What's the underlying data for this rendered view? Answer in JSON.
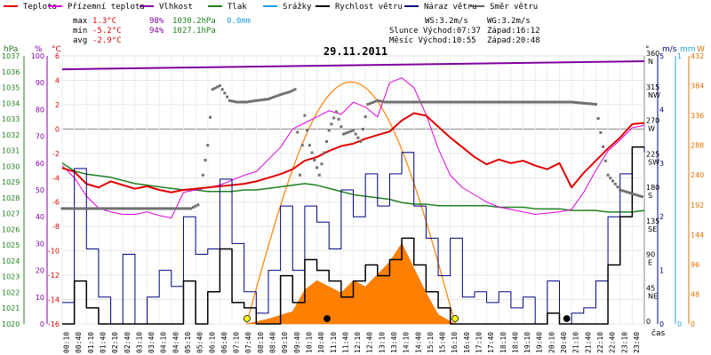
{
  "chart_data": {
    "type": "line",
    "title": "29.11.2011",
    "xlabel": "čas",
    "legend": [
      {
        "label": "Teplota",
        "color": "#e00000"
      },
      {
        "label": "Přízemní teplota",
        "color": "#e000e0"
      },
      {
        "label": "Vlhkost",
        "color": "#8000a0"
      },
      {
        "label": "Tlak",
        "color": "#208020"
      },
      {
        "label": "Srážky",
        "color": "#20a0e0"
      },
      {
        "label": "Rychlost větru",
        "color": "#000000"
      },
      {
        "label": "Náraz větru",
        "color": "#000080"
      },
      {
        "label": "Směr větru",
        "color": "#606060"
      }
    ],
    "stats": {
      "max_label": "max",
      "min_label": "min",
      "avg_label": "avg",
      "max_temp": "1.3°C",
      "max_hum": "98%",
      "max_press": "1030.2hPa",
      "max_rain": "0.0mm",
      "min_temp": "-5.2°C",
      "min_hum": "94%",
      "min_press": "1027.1hPa",
      "avg_temp": "-2.9°C"
    },
    "info": {
      "ws": "WS:3.2m/s",
      "wg": "WG:3.2m/s",
      "sun": "Slunce Východ:07:37",
      "sunset": "Západ:16:12",
      "moon": "Měsíc  Východ:10:55",
      "moonset": "Západ:20:48"
    },
    "axes": {
      "hpa_unit": "hPa",
      "pct_unit": "%",
      "temp_unit": "°C",
      "dir_unit": "°",
      "ms_unit": "m/s",
      "mm_unit": "mm",
      "w_unit": "W",
      "hpa_ticks": [
        1037,
        1036,
        1035,
        1034,
        1033,
        1032,
        1031,
        1030,
        1029,
        1028,
        1027,
        1026,
        1025,
        1024,
        1023,
        1022,
        1021,
        1020
      ],
      "pct_ticks": [
        100,
        90,
        80,
        70,
        60,
        50,
        40,
        30,
        20,
        10,
        0
      ],
      "temp_ticks": [
        6,
        4,
        2,
        0,
        -2,
        -4,
        -6,
        -8,
        -10,
        -12,
        -14,
        -16
      ],
      "dir_ticks": [
        {
          "deg": "360",
          "name": "N"
        },
        {
          "deg": "315",
          "name": "NW"
        },
        {
          "deg": "270",
          "name": "W"
        },
        {
          "deg": "225",
          "name": "SW"
        },
        {
          "deg": "180",
          "name": "S"
        },
        {
          "deg": "135",
          "name": "SE"
        },
        {
          "deg": "90",
          "name": "E"
        },
        {
          "deg": "45",
          "name": "NE"
        },
        {
          "deg": "0",
          "name": ""
        }
      ],
      "ms_ticks": [
        5,
        4,
        3,
        2,
        1,
        0
      ],
      "mm_ticks": [
        1,
        0
      ],
      "w_ticks": [
        432,
        384,
        336,
        288,
        240,
        192,
        144,
        96,
        48,
        0
      ],
      "time_ticks": [
        "00:10",
        "00:40",
        "01:10",
        "01:40",
        "02:10",
        "02:40",
        "03:10",
        "03:40",
        "04:10",
        "04:40",
        "05:10",
        "05:40",
        "06:10",
        "06:40",
        "07:10",
        "07:40",
        "08:10",
        "08:40",
        "09:10",
        "09:40",
        "10:10",
        "10:40",
        "11:10",
        "11:40",
        "12:10",
        "12:40",
        "13:10",
        "13:40",
        "14:10",
        "14:40",
        "15:10",
        "15:40",
        "16:10",
        "16:40",
        "17:10",
        "17:40",
        "18:10",
        "18:40",
        "19:10",
        "19:40",
        "20:10",
        "20:40",
        "21:10",
        "21:40",
        "22:10",
        "22:40",
        "23:10",
        "23:40"
      ]
    },
    "ranges": {
      "temp_c": [
        -16,
        6
      ],
      "humidity_pct": [
        0,
        100
      ],
      "pressure_hpa": [
        1020,
        1037
      ],
      "wind_ms": [
        0,
        5
      ],
      "direction_deg": [
        0,
        360
      ],
      "radiation_w": [
        0,
        432
      ]
    },
    "series": [
      {
        "name": "Teplota",
        "unit": "°C",
        "x_hours": [
          0,
          0.5,
          1,
          1.5,
          2,
          2.5,
          3,
          3.5,
          4,
          4.5,
          5,
          5.5,
          6,
          6.5,
          7,
          7.5,
          8,
          8.5,
          9,
          9.5,
          10,
          10.5,
          11,
          11.5,
          12,
          12.5,
          13,
          13.5,
          14,
          14.5,
          15,
          15.5,
          16,
          16.5,
          17,
          17.5,
          18,
          18.5,
          19,
          19.5,
          20,
          20.5,
          21,
          21.5,
          22,
          22.5,
          23,
          23.5,
          24
        ],
        "values": [
          -3.2,
          -3.5,
          -4.5,
          -4.8,
          -4.3,
          -4.6,
          -4.9,
          -4.7,
          -5.0,
          -5.2,
          -5.0,
          -4.9,
          -4.8,
          -4.7,
          -4.6,
          -4.5,
          -4.3,
          -4.0,
          -3.7,
          -3.3,
          -2.6,
          -2.3,
          -1.8,
          -1.4,
          -1.2,
          -0.8,
          -0.5,
          -0.2,
          0.7,
          1.3,
          1.1,
          0.2,
          -0.7,
          -1.5,
          -2.3,
          -2.9,
          -2.5,
          -2.8,
          -2.6,
          -3.0,
          -3.3,
          -2.8,
          -4.8,
          -3.6,
          -2.6,
          -1.6,
          -0.7,
          0.4,
          0.5
        ]
      },
      {
        "name": "Přízemní teplota",
        "unit": "°C",
        "x_hours": [
          0,
          0.5,
          1,
          1.5,
          2,
          2.5,
          3,
          3.5,
          4,
          4.5,
          5,
          5.5,
          6,
          6.5,
          7,
          7.5,
          8,
          8.5,
          9,
          9.5,
          10,
          10.5,
          11,
          11.5,
          12,
          12.5,
          13,
          13.5,
          14,
          14.5,
          15,
          15.5,
          16,
          16.5,
          17,
          17.5,
          18,
          18.5,
          19,
          19.5,
          20,
          20.5,
          21,
          21.5,
          22,
          22.5,
          23,
          23.5,
          24
        ],
        "values": [
          -3.0,
          -4.0,
          -5.5,
          -6.5,
          -6.8,
          -7.0,
          -7.0,
          -6.8,
          -7.1,
          -7.3,
          -5.2,
          -5.0,
          -4.8,
          -4.6,
          -4.2,
          -3.8,
          -3.5,
          -2.5,
          -1.5,
          0.0,
          0.5,
          1.0,
          1.5,
          1.2,
          2.2,
          1.8,
          1.0,
          3.8,
          4.2,
          3.4,
          1.2,
          -1.6,
          -3.8,
          -4.8,
          -5.4,
          -6.0,
          -6.4,
          -6.6,
          -6.8,
          -7.0,
          -6.9,
          -6.8,
          -6.6,
          -5.2,
          -3.4,
          -1.8,
          -0.9,
          0.1,
          0.3
        ]
      },
      {
        "name": "Vlhkost",
        "unit": "%",
        "x_hours": [
          0,
          24
        ],
        "values": [
          95,
          98
        ]
      },
      {
        "name": "Tlak",
        "unit": "hPa",
        "x_hours": [
          0,
          0.5,
          1,
          1.5,
          2,
          2.5,
          3,
          3.5,
          4,
          4.5,
          5,
          5.5,
          6,
          6.5,
          7,
          7.5,
          8,
          8.5,
          9,
          9.5,
          10,
          10.5,
          11,
          11.5,
          12,
          12.5,
          13,
          13.5,
          14,
          14.5,
          15,
          15.5,
          16,
          16.5,
          17,
          17.5,
          18,
          18.5,
          19,
          19.5,
          20,
          20.5,
          21,
          21.5,
          22,
          22.5,
          23,
          23.5,
          24
        ],
        "values": [
          1030.2,
          1029.7,
          1029.5,
          1029.4,
          1029.3,
          1029.1,
          1028.9,
          1028.8,
          1028.7,
          1028.6,
          1028.5,
          1028.5,
          1028.4,
          1028.4,
          1028.4,
          1028.5,
          1028.5,
          1028.6,
          1028.7,
          1028.8,
          1028.9,
          1028.8,
          1028.6,
          1028.4,
          1028.2,
          1028.1,
          1028.0,
          1027.9,
          1027.7,
          1027.6,
          1027.6,
          1027.5,
          1027.5,
          1027.5,
          1027.5,
          1027.5,
          1027.4,
          1027.4,
          1027.4,
          1027.3,
          1027.3,
          1027.3,
          1027.2,
          1027.2,
          1027.2,
          1027.1,
          1027.1,
          1027.1,
          1027.2
        ]
      },
      {
        "name": "Rychlost větru",
        "unit": "m/s",
        "x_hours": [
          0,
          0.5,
          1,
          1.5,
          2,
          2.5,
          3,
          3.5,
          4,
          4.5,
          5,
          5.5,
          6,
          6.5,
          7,
          7.5,
          8,
          8.5,
          9,
          9.5,
          10,
          10.5,
          11,
          11.5,
          12,
          12.5,
          13,
          13.5,
          14,
          14.5,
          15,
          15.5,
          16,
          16.5,
          17,
          17.5,
          18,
          18.5,
          19,
          19.5,
          20,
          20.5,
          21,
          21.5,
          22,
          22.5,
          23,
          23.5,
          24
        ],
        "values": [
          0,
          0.8,
          0.3,
          0,
          0,
          0,
          0,
          0,
          0,
          0,
          0.8,
          0,
          0.6,
          1.4,
          0.4,
          0.3,
          0,
          0,
          0.9,
          0.4,
          1.2,
          1.0,
          0.8,
          0.5,
          0.8,
          1.1,
          0.9,
          1.2,
          1.6,
          1.1,
          0.6,
          0.3,
          0,
          0,
          0,
          0,
          0,
          0,
          0,
          0,
          0.2,
          0,
          0,
          0,
          0,
          1.1,
          2.0,
          3.3,
          3.3
        ]
      },
      {
        "name": "Náraz větru",
        "unit": "m/s",
        "x_hours": [
          0,
          0.5,
          1,
          1.5,
          2,
          2.5,
          3,
          3.5,
          4,
          4.5,
          5,
          5.5,
          6,
          6.5,
          7,
          7.5,
          8,
          8.5,
          9,
          9.5,
          10,
          10.5,
          11,
          11.5,
          12,
          12.5,
          13,
          13.5,
          14,
          14.5,
          15,
          15.5,
          16,
          16.5,
          17,
          17.5,
          18,
          18.5,
          19,
          19.5,
          20,
          20.5,
          21,
          21.5,
          22,
          22.5,
          23,
          23.5,
          24
        ],
        "values": [
          0.4,
          2.9,
          1.4,
          0.5,
          0,
          1.3,
          0,
          0.5,
          1.0,
          0.7,
          2.0,
          1.3,
          1.4,
          2.7,
          1.5,
          0.6,
          0.2,
          1.0,
          2.2,
          1.0,
          2.2,
          1.9,
          1.4,
          2.5,
          2.0,
          2.8,
          2.2,
          2.8,
          3.2,
          2.2,
          1.6,
          0.9,
          1.6,
          0.5,
          0.6,
          0.4,
          0.6,
          0.3,
          0.5,
          0,
          0.8,
          0,
          0.2,
          0.3,
          0.8,
          2.0,
          2.8,
          3.3,
          3.2
        ]
      },
      {
        "name": "Směr větru",
        "unit": "°",
        "x_hours": [
          0,
          5.3,
          5.6,
          6.0,
          6.2,
          6.5,
          6.9,
          7.2,
          7.6,
          8.0,
          8.5,
          9.0,
          9.4,
          9.6,
          9.8,
          10.0,
          10.2,
          10.6,
          11.0,
          11.3,
          11.6,
          12.0,
          12.3,
          12.6,
          13.0,
          13.3,
          14.0,
          15.0,
          16.0,
          17.0,
          18.0,
          19.0,
          20.0,
          21.0,
          22.0,
          22.5,
          23.0,
          23.5,
          24
        ],
        "values": [
          155,
          155,
          160,
          240,
          315,
          320,
          300,
          298,
          298,
          300,
          302,
          308,
          312,
          315,
          200,
          280,
          240,
          200,
          260,
          285,
          255,
          260,
          245,
          295,
          300,
          298,
          298,
          298,
          298,
          298,
          298,
          298,
          298,
          298,
          295,
          200,
          180,
          175,
          170
        ]
      },
      {
        "name": "Radiace",
        "unit": "W",
        "x_hours": [
          7.6,
          8.5,
          9.5,
          10,
          10.5,
          11,
          11.5,
          12,
          12.5,
          13,
          13.5,
          14,
          14.5,
          15,
          15.5,
          16.2
        ],
        "values": [
          0,
          8,
          20,
          55,
          70,
          60,
          50,
          70,
          60,
          80,
          100,
          130,
          90,
          50,
          15,
          0
        ]
      },
      {
        "name": "Max. radiace",
        "unit": "W",
        "x_hours": [
          7.6,
          8.5,
          9.5,
          10.5,
          11.5,
          12.0,
          12.5,
          13.5,
          14.5,
          15.5,
          16.2
        ],
        "values": [
          0,
          120,
          240,
          330,
          380,
          390,
          380,
          330,
          240,
          120,
          0
        ]
      }
    ]
  }
}
